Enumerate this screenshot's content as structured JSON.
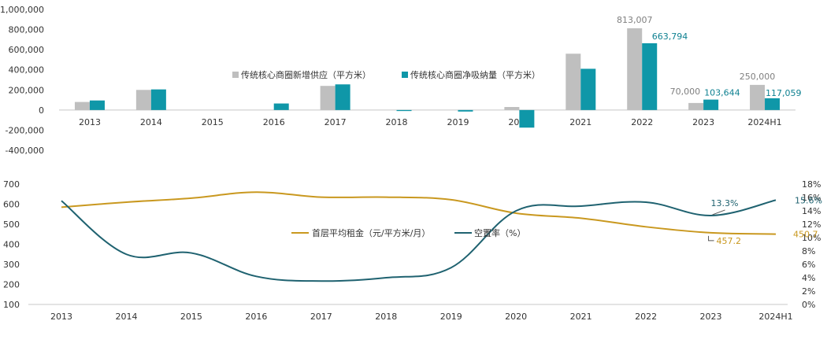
{
  "chart_data": [
    {
      "type": "bar",
      "categories": [
        "2013",
        "2014",
        "2015",
        "2016",
        "2017",
        "2018",
        "2019",
        "2020",
        "2021",
        "2022",
        "2023",
        "2024H1"
      ],
      "series": [
        {
          "name": "传统核心商圈新增供应（平方米）",
          "color": "#bfbfbf",
          "values": [
            80000,
            200000,
            0,
            0,
            240000,
            0,
            0,
            30000,
            560000,
            813007,
            70000,
            250000
          ]
        },
        {
          "name": "传统核心商圈净吸纳量（平方米）",
          "color": "#0f97a8",
          "values": [
            95000,
            205000,
            0,
            65000,
            255000,
            -10000,
            -15000,
            -175000,
            410000,
            663794,
            103644,
            117059
          ]
        }
      ],
      "data_labels": [
        {
          "series": 0,
          "index": 9,
          "text": "813,007"
        },
        {
          "series": 1,
          "index": 9,
          "text": "663,794"
        },
        {
          "series": 0,
          "index": 10,
          "text": "70,000"
        },
        {
          "series": 1,
          "index": 10,
          "text": "103,644"
        },
        {
          "series": 0,
          "index": 11,
          "text": "250,000"
        },
        {
          "series": 1,
          "index": 11,
          "text": "117,059"
        }
      ],
      "ylim": [
        -400000,
        1000000
      ],
      "yticks": [
        "-400,000",
        "-200,000",
        "0",
        "200,000",
        "400,000",
        "600,000",
        "800,000",
        "1,000,000"
      ],
      "legend_position": "center",
      "grid": false
    },
    {
      "type": "line",
      "categories": [
        "2013",
        "2014",
        "2015",
        "2016",
        "2017",
        "2018",
        "2019",
        "2020",
        "2021",
        "2022",
        "2023",
        "2024H1"
      ],
      "series": [
        {
          "name": "首层平均租金（元/平方米/月）",
          "axis": "left",
          "color": "#c9981f",
          "values": [
            585,
            610,
            630,
            660,
            635,
            635,
            622,
            555,
            530,
            487,
            457.2,
            450.7
          ]
        },
        {
          "name": "空置率（%）",
          "axis": "right",
          "color": "#1f6270",
          "values": [
            15.5,
            7.5,
            7.7,
            4.2,
            3.5,
            4.0,
            5.5,
            14.0,
            14.7,
            15.3,
            13.3,
            15.6
          ]
        }
      ],
      "data_labels": [
        {
          "series": 0,
          "index": 10,
          "text": "457.2"
        },
        {
          "series": 0,
          "index": 11,
          "text": "450.7"
        },
        {
          "series": 1,
          "index": 10,
          "text": "13.3%"
        },
        {
          "series": 1,
          "index": 11,
          "text": "15.6%"
        }
      ],
      "ylim_left": [
        100,
        700
      ],
      "yticks_left": [
        "100",
        "200",
        "300",
        "400",
        "500",
        "600",
        "700"
      ],
      "ylim_right": [
        0,
        18
      ],
      "yticks_right": [
        "0%",
        "2%",
        "4%",
        "6%",
        "8%",
        "10%",
        "12%",
        "14%",
        "16%",
        "18%"
      ],
      "legend_position": "center",
      "grid": false
    }
  ]
}
